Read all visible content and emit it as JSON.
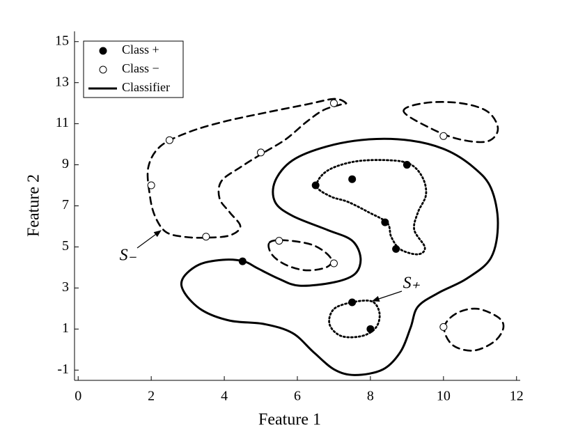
{
  "chart_data": {
    "type": "scatter",
    "xlabel": "Feature 1",
    "ylabel": "Feature 2",
    "xlim": [
      -0.1,
      12.1
    ],
    "ylim": [
      -1.5,
      15.5
    ],
    "xticks": [
      0,
      2,
      4,
      6,
      8,
      10,
      12
    ],
    "yticks": [
      -1,
      1,
      3,
      5,
      7,
      9,
      11,
      13,
      15
    ],
    "legend": "upper left",
    "series": [
      {
        "name": "Class +",
        "marker": "filled",
        "color": "#000000",
        "x": [
          4.5,
          6.5,
          7.5,
          9,
          8.4,
          8.7,
          7.5,
          8
        ],
        "y": [
          4.3,
          8,
          8.3,
          9,
          6.2,
          4.9,
          2.3,
          1
        ]
      },
      {
        "name": "Class −",
        "marker": "open",
        "color": "#000000",
        "x": [
          7,
          2.5,
          5,
          2,
          3.5,
          5.5,
          7,
          10,
          10
        ],
        "y": [
          12,
          10.2,
          9.6,
          8,
          5.5,
          5.3,
          4.2,
          10.4,
          1.1
        ]
      },
      {
        "name": "Classifier",
        "style": "solid",
        "color": "#000000",
        "x": [
          4.53,
          3.96,
          3.3,
          2.86,
          2.91,
          3.39,
          4.15,
          5.1,
          5.87,
          6.44,
          7.01,
          7.58,
          8.34,
          8.82,
          9.1,
          9.3,
          9.87,
          10.63,
          11.3,
          11.49,
          11.3,
          10.82,
          10.06,
          9.1,
          7.96,
          6.82,
          5.87,
          5.39,
          5.39,
          5.87,
          6.82,
          7.49,
          7.73,
          7.58,
          7.01,
          6.06,
          5.49,
          4.91
        ],
        "y": [
          4.3,
          4.37,
          4.13,
          3.45,
          2.77,
          1.92,
          1.41,
          1.24,
          0.8,
          -0.12,
          -0.97,
          -1.24,
          -0.97,
          -0.12,
          1.07,
          2.09,
          2.77,
          3.45,
          4.47,
          6.17,
          7.87,
          8.88,
          9.73,
          10.18,
          10.24,
          9.9,
          9.22,
          8.2,
          7.19,
          6.51,
          5.83,
          5.32,
          4.47,
          3.69,
          3.28,
          3.11,
          3.45,
          3.96
        ]
      }
    ],
    "boundaries": [
      {
        "style": "dashed",
        "color": "#000000",
        "x": [
          7.33,
          7.01,
          6.25,
          5.1,
          3.96,
          3.01,
          2.25,
          1.92,
          1.96,
          2.1,
          2.4,
          2.91,
          3.52,
          4.15,
          4.44,
          4.15,
          3.87,
          3.92,
          4.44,
          5.05,
          5.68,
          6.25,
          6.72,
          7.2
        ],
        "y": [
          12.01,
          12.21,
          11.94,
          11.53,
          11.09,
          10.58,
          9.9,
          8.88,
          7.53,
          6.51,
          5.73,
          5.49,
          5.45,
          5.56,
          6,
          6.68,
          7.36,
          8.2,
          8.88,
          9.56,
          10.24,
          11.09,
          11.67,
          11.94
        ]
      },
      {
        "style": "dashed",
        "color": "#000000",
        "x": [
          5.24,
          5.68,
          6.44,
          6.91,
          6.82,
          6.25,
          5.68,
          5.3
        ],
        "y": [
          5.22,
          5.32,
          5.08,
          4.47,
          4.03,
          3.86,
          4.13,
          4.64
        ]
      },
      {
        "style": "dashed",
        "color": "#000000",
        "x": [
          8.91,
          9.49,
          10.44,
          11.2,
          11.49,
          11.2,
          10.44,
          9.68
        ],
        "y": [
          11.6,
          12.01,
          12.01,
          11.6,
          10.75,
          10.14,
          10.24,
          10.75
        ]
      },
      {
        "style": "dashed",
        "color": "#000000",
        "x": [
          10.02,
          10.34,
          10.91,
          11.49,
          11.64,
          11.39,
          10.82,
          10.25
        ],
        "y": [
          1.07,
          1.75,
          1.99,
          1.58,
          1.07,
          0.39,
          -0.05,
          0.22
        ]
      },
      {
        "style": "dotted",
        "color": "#000000",
        "x": [
          6.53,
          6.82,
          7.58,
          8.53,
          9.1,
          9.43,
          9.52,
          9.3,
          9.2,
          9.49,
          9.3,
          8.82,
          8.57,
          8.46,
          7.96,
          7.39,
          6.91
        ],
        "y": [
          7.97,
          8.71,
          9.16,
          9.22,
          9.02,
          8.37,
          7.53,
          6.68,
          5.83,
          4.98,
          4.64,
          4.88,
          5.49,
          6.17,
          6.68,
          7.19,
          7.46
        ]
      },
      {
        "style": "dotted",
        "color": "#000000",
        "x": [
          7.58,
          8.06,
          8.25,
          8.15,
          7.77,
          7.2,
          6.88,
          7.01
        ],
        "y": [
          2.33,
          2.33,
          1.75,
          1.07,
          0.66,
          0.66,
          1.24,
          1.99
        ]
      }
    ],
    "annotations": [
      "S₋",
      "S₊"
    ]
  }
}
